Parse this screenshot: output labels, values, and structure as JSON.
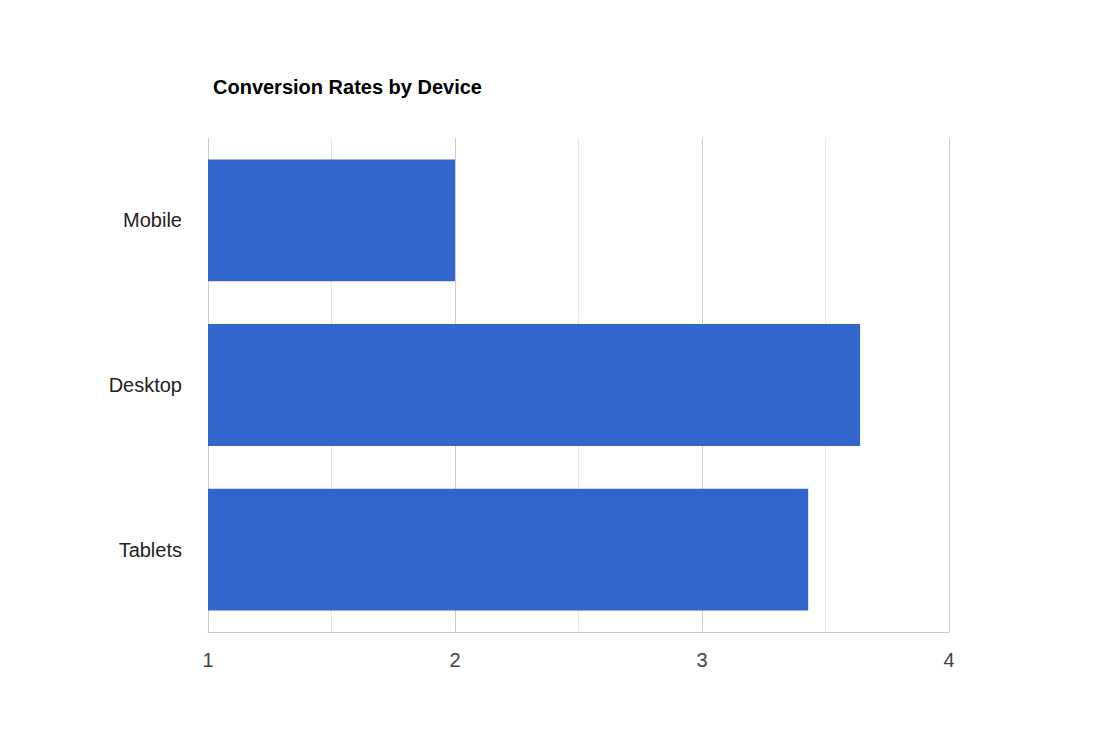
{
  "chart_data": {
    "type": "bar",
    "title": "Conversion Rates by Device",
    "orientation": "horizontal",
    "categories": [
      "Mobile",
      "Desktop",
      "Tablets"
    ],
    "values": [
      2.0,
      3.64,
      3.43
    ],
    "color": "#3366cc",
    "xlim": [
      1,
      4
    ],
    "xticks": [
      1,
      2,
      3,
      4
    ],
    "grid": true
  }
}
